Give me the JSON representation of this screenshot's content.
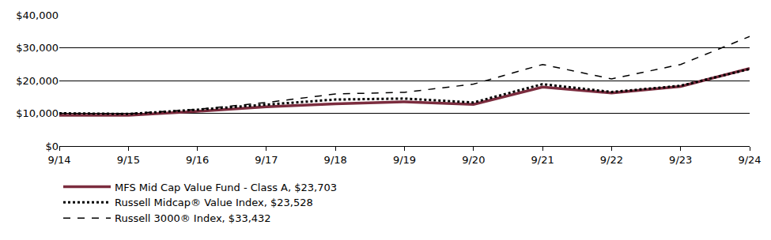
{
  "chart_data": {
    "type": "line",
    "categories": [
      "9/14",
      "9/15",
      "9/16",
      "9/17",
      "9/18",
      "9/19",
      "9/20",
      "9/21",
      "9/22",
      "9/23",
      "9/24"
    ],
    "series": [
      {
        "name": "MFS Mid Cap Value Fund - Class A, $23,703",
        "color": "#7b2c3e",
        "line_style": "solid",
        "values": [
          9425,
          9400,
          10600,
          12000,
          12900,
          13500,
          12700,
          18000,
          16200,
          18200,
          23703
        ]
      },
      {
        "name": "Russell Midcap® Value Index, $23,528",
        "color": "#000000",
        "line_style": "dotted",
        "values": [
          10000,
          9800,
          11100,
          12600,
          14200,
          14500,
          13300,
          18900,
          16500,
          18400,
          23528
        ]
      },
      {
        "name": "Russell 3000® Index, $33,432",
        "color": "#000000",
        "line_style": "dashed",
        "values": [
          10000,
          9900,
          11200,
          13300,
          15900,
          16400,
          18900,
          24900,
          20500,
          24900,
          33432
        ]
      }
    ],
    "ylim": [
      0,
      40000
    ],
    "yticks": [
      {
        "value": 0,
        "label": "$0"
      },
      {
        "value": 10000,
        "label": "$10,000"
      },
      {
        "value": 20000,
        "label": "$20,000"
      },
      {
        "value": 30000,
        "label": "$30,000"
      },
      {
        "value": 40000,
        "label": "$40,000"
      }
    ],
    "grid": true,
    "legend": "bottom"
  }
}
